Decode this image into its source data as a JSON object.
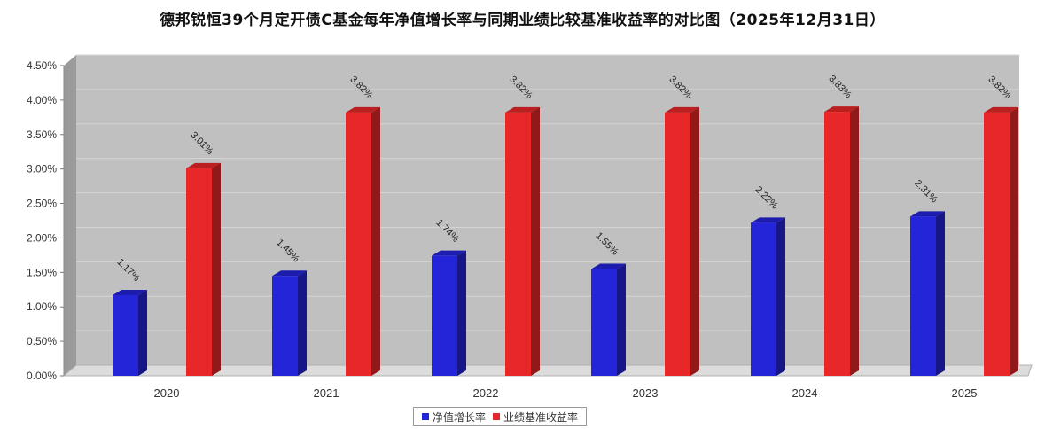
{
  "chart_data": {
    "type": "bar",
    "title": "德邦锐恒39个月定开债C基金每年净值增长率与同期业绩比较基准收益率的对比图（2025年12月31日）",
    "categories": [
      "2020",
      "2021",
      "2022",
      "2023",
      "2024",
      "2025"
    ],
    "series": [
      {
        "name": "净值增长率",
        "values": [
          1.17,
          1.45,
          1.74,
          1.55,
          2.22,
          2.31
        ],
        "labels": [
          "1.17%",
          "1.45%",
          "1.74%",
          "1.55%",
          "2.22%",
          "2.31%"
        ],
        "color": "#2424d8"
      },
      {
        "name": "业绩基准收益率",
        "values": [
          3.01,
          3.82,
          3.82,
          3.82,
          3.83,
          3.82
        ],
        "labels": [
          "3.01%",
          "3.82%",
          "3.82%",
          "3.82%",
          "3.83%",
          "3.82%"
        ],
        "color": "#e82828"
      }
    ],
    "ylim": [
      0,
      4.5
    ],
    "yticks": [
      "0.00%",
      "0.50%",
      "1.00%",
      "1.50%",
      "2.00%",
      "2.50%",
      "3.00%",
      "3.50%",
      "4.00%",
      "4.50%"
    ],
    "grid": true,
    "legend_position": "bottom-center",
    "xlabel": "",
    "ylabel": ""
  }
}
